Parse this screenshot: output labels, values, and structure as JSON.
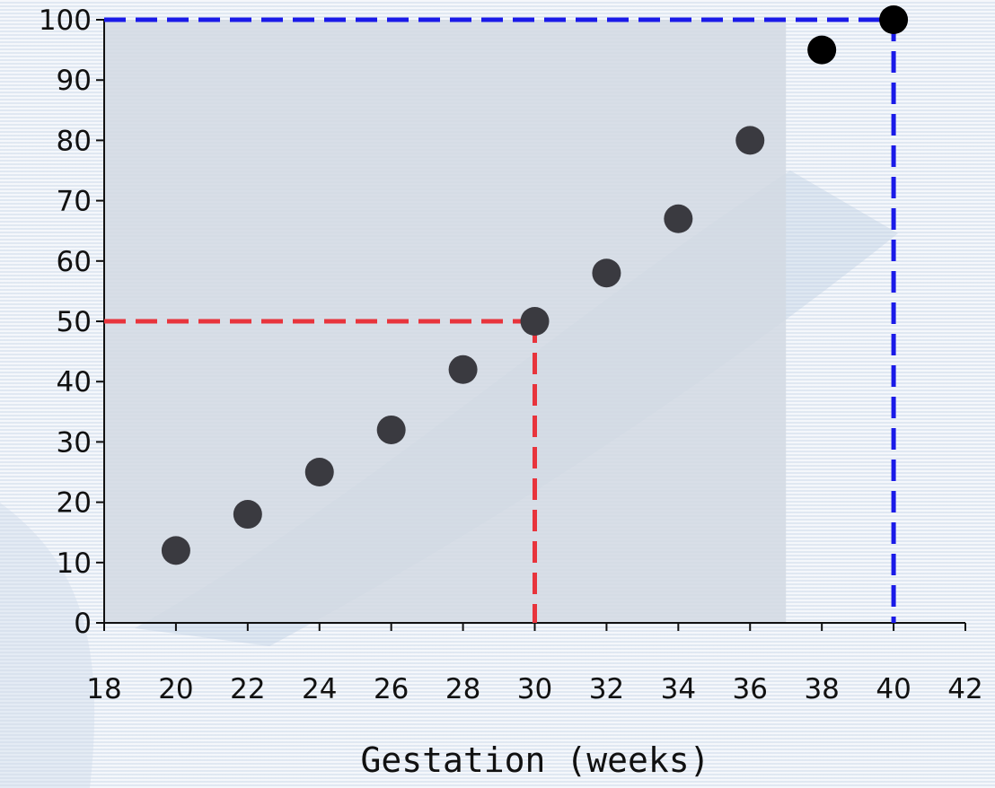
{
  "chart_data": {
    "type": "scatter",
    "title": "",
    "xlabel": "Gestation (weeks)",
    "ylabel": "",
    "xlim": [
      18,
      42
    ],
    "ylim": [
      0,
      100
    ],
    "x_ticks": [
      "18",
      "20",
      "22",
      "24",
      "26",
      "28",
      "30",
      "32",
      "34",
      "36",
      "38",
      "40",
      "42"
    ],
    "y_ticks": [
      "0",
      "10",
      "20",
      "30",
      "40",
      "50",
      "60",
      "70",
      "80",
      "90",
      "100"
    ],
    "grid": false,
    "series": [
      {
        "color": "#3a3a40",
        "points": [
          {
            "x": 20,
            "y": 12
          },
          {
            "x": 22,
            "y": 18
          },
          {
            "x": 24,
            "y": 25
          },
          {
            "x": 26,
            "y": 32
          },
          {
            "x": 28,
            "y": 42
          },
          {
            "x": 30,
            "y": 50
          },
          {
            "x": 32,
            "y": 58
          },
          {
            "x": 34,
            "y": 67
          },
          {
            "x": 36,
            "y": 80
          },
          {
            "x": 38,
            "y": 95
          },
          {
            "x": 40,
            "y": 100
          }
        ]
      }
    ],
    "reference_lines": [
      {
        "x": 30,
        "y": 50,
        "color": "#e8343c",
        "style": "dashed"
      },
      {
        "x": 40,
        "y": 100,
        "color": "#1a1ae8",
        "style": "dashed"
      }
    ],
    "shaded_region": {
      "x": [
        18,
        37
      ],
      "y": [
        0,
        100
      ],
      "color": "#d2d9e3"
    }
  }
}
